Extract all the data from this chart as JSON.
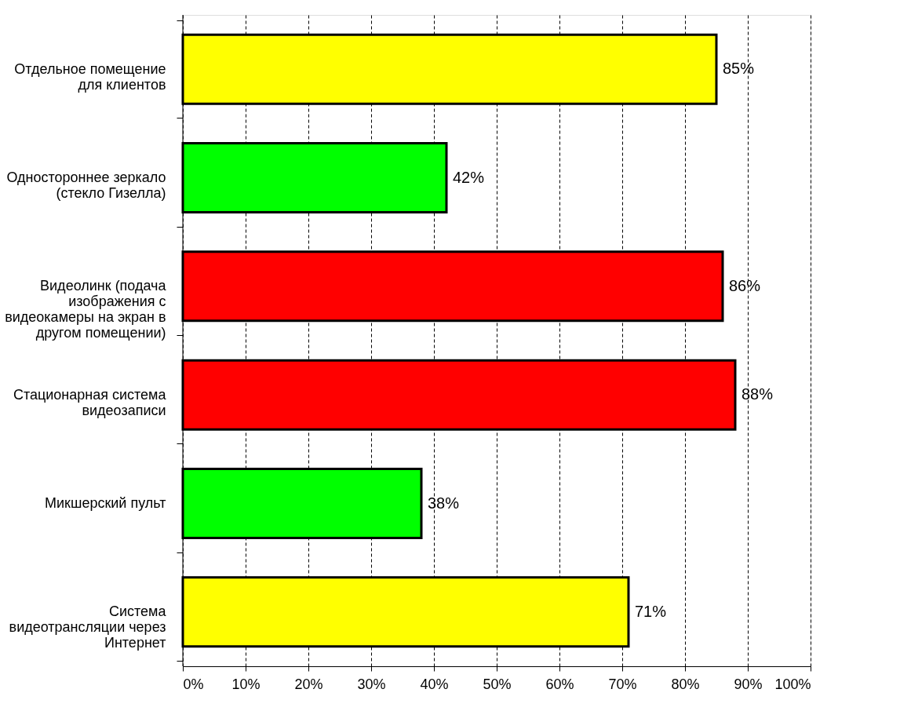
{
  "chart_data": {
    "type": "bar",
    "orientation": "horizontal",
    "categories": [
      "Отдельное помещение для клиентов",
      "Одностороннее зеркало (стекло Гизелла)",
      "Видеолинк (подача изображения с видеокамеры на экран в другом помещении)",
      "Стационарная система видеозаписи",
      "Микшерский пульт",
      "Система видеотрансляции через Интернет"
    ],
    "values": [
      85,
      42,
      86,
      88,
      38,
      71
    ],
    "colors": [
      "#ffff00",
      "#00ff00",
      "#ff0000",
      "#ff0000",
      "#00ff00",
      "#ffff00"
    ],
    "value_labels": [
      "85%",
      "42%",
      "86%",
      "88%",
      "38%",
      "71%"
    ],
    "xlim": [
      0,
      100
    ],
    "xticks": [
      {
        "value": 0,
        "label": "0%"
      },
      {
        "value": 10,
        "label": "10%"
      },
      {
        "value": 20,
        "label": "20%"
      },
      {
        "value": 30,
        "label": "30%"
      },
      {
        "value": 40,
        "label": "40%"
      },
      {
        "value": 50,
        "label": "50%"
      },
      {
        "value": 60,
        "label": "60%"
      },
      {
        "value": 70,
        "label": "70%"
      },
      {
        "value": 80,
        "label": "80%"
      },
      {
        "value": 90,
        "label": "90%"
      },
      {
        "value": 100,
        "label": "100%"
      }
    ],
    "grid": "x",
    "legend": false
  }
}
